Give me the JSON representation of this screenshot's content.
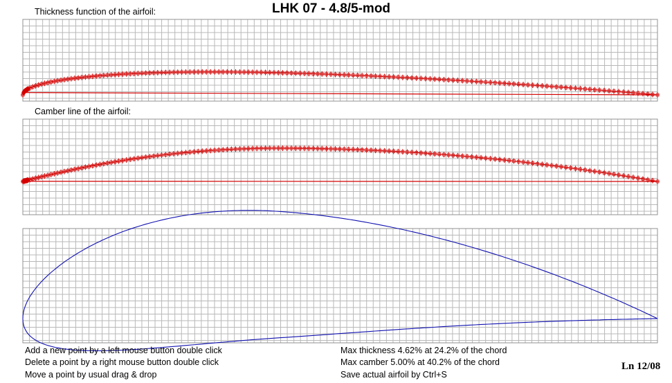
{
  "title": "LHK  07 - 4.8/5-mod",
  "panels": {
    "thickness": {
      "label": "Thickness function of the airfoil:"
    },
    "camber": {
      "label": "Camber line of the airfoil:"
    },
    "airfoil": {
      "label": ""
    }
  },
  "help": {
    "add": "Add a new point by a left mouse button double click",
    "delete": "Delete a point by a right mouse button double click",
    "move": "Move a point by usual drag & drop"
  },
  "stats": {
    "max_thickness": "Max thickness 4.62% at 24.2% of the chord",
    "max_camber": "Max camber 5.00% at 40.2% of the chord",
    "save": "Save actual airfoil by Ctrl+S"
  },
  "line_info": "Ln 12/08",
  "colors": {
    "grid": "#b8b8b8",
    "frame": "#909090",
    "points": "#d40000",
    "airfoil": "#1010b0"
  },
  "airfoil_data": {
    "max_thickness_pct": 4.62,
    "max_thickness_x_pct": 24.2,
    "max_camber_pct": 5.0,
    "max_camber_x_pct": 40.2
  }
}
